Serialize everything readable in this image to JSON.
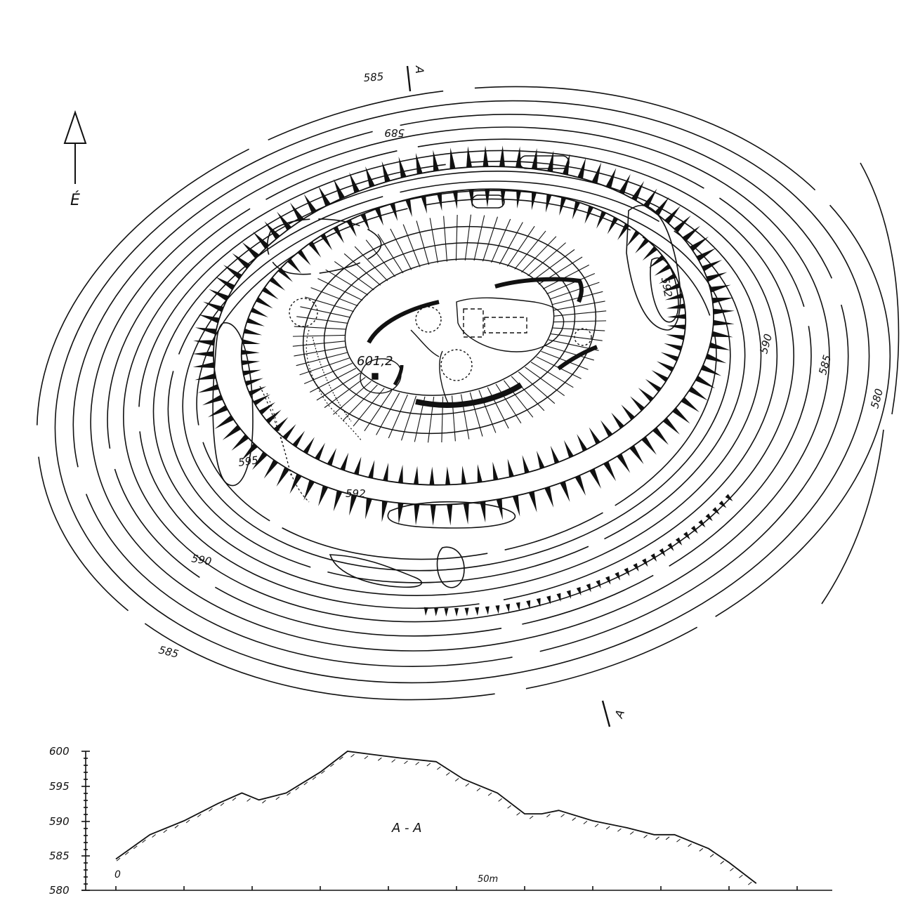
{
  "map": {
    "north_arrow": {
      "label": "É"
    },
    "summit": {
      "label": "601,2"
    },
    "contour_labels": [
      {
        "id": "c585-top",
        "text": "585"
      },
      {
        "id": "c589-top",
        "text": "589"
      },
      {
        "id": "c592-right",
        "text": "592"
      },
      {
        "id": "c590-right",
        "text": "590"
      },
      {
        "id": "c585-right",
        "text": "585"
      },
      {
        "id": "c580-right",
        "text": "580"
      },
      {
        "id": "c595-left",
        "text": "595"
      },
      {
        "id": "c592-bottom",
        "text": "592"
      },
      {
        "id": "c590-left",
        "text": "590"
      },
      {
        "id": "c585-left",
        "text": "585"
      }
    ],
    "section_markers": {
      "top": "A",
      "bottom": "A"
    }
  },
  "profile": {
    "title": "A - A",
    "y_ticks": [
      "600",
      "595",
      "590",
      "585",
      "580"
    ],
    "x_labels": {
      "start": "0",
      "mid": "50m"
    }
  },
  "chart_data": {
    "type": "line",
    "title": "A - A",
    "xlabel": "",
    "ylabel": "",
    "ylim": [
      580,
      600
    ],
    "xlim": [
      0,
      100
    ],
    "x": [
      0,
      5,
      10,
      15,
      18.5,
      21,
      25,
      30,
      34,
      38,
      42,
      47,
      51,
      56,
      60,
      62.5,
      65,
      70,
      75,
      79,
      82,
      87,
      90,
      94
    ],
    "series": [
      {
        "values": [
          584.5,
          588,
          590,
          592.5,
          594,
          593,
          594,
          597,
          600,
          599.5,
          599,
          598.5,
          596,
          594,
          591,
          591,
          591.5,
          590,
          589,
          588,
          588,
          586,
          584,
          581
        ]
      }
    ]
  }
}
